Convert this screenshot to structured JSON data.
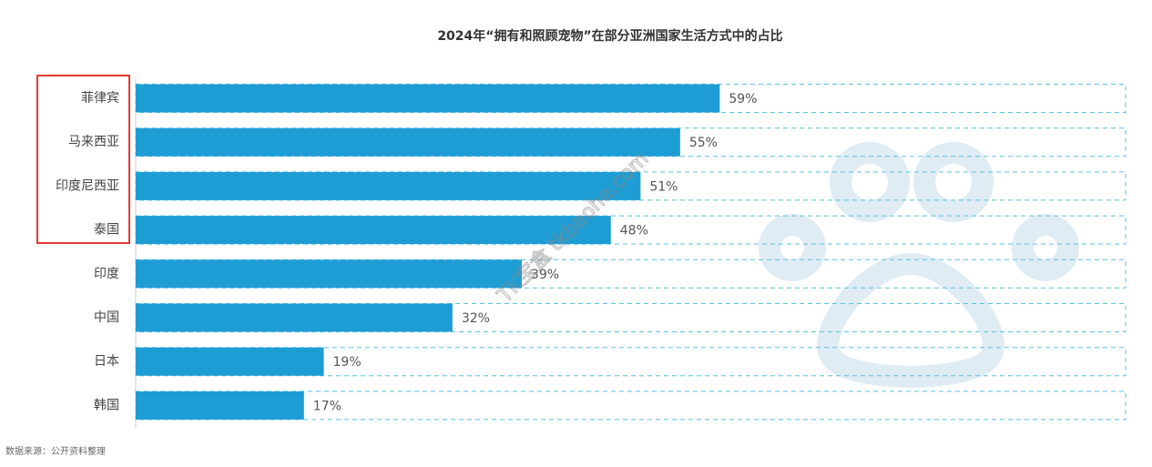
{
  "chart_data": {
    "type": "hbar",
    "title": "2024年“拥有和照顾宠物”在部分亚洲国家生活方式中的占比",
    "categories": [
      "菲律宾",
      "马来西亚",
      "印度尼西亚",
      "泰国",
      "印度",
      "中国",
      "日本",
      "韩国"
    ],
    "values": [
      59,
      55,
      51,
      48,
      39,
      32,
      19,
      17
    ],
    "value_labels": [
      "59%",
      "55%",
      "51%",
      "48%",
      "39%",
      "32%",
      "19%",
      "17%"
    ],
    "color": "#1e9dd4",
    "xlim": [
      0,
      100
    ],
    "source": "数据来源：公开资料整理",
    "watermark": "TK宝盒 tkbaohe.com"
  }
}
